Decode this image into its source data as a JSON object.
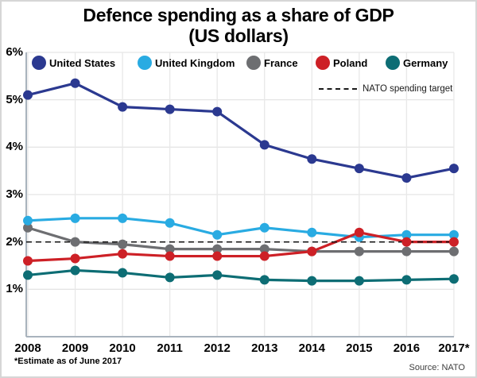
{
  "title": {
    "line1": "Defence spending as a share of GDP",
    "line2": "(US dollars)"
  },
  "footnote": "*Estimate as of June 2017",
  "source": "Source: NATO",
  "colors": {
    "united_states": "#2b3990",
    "united_kingdom": "#29abe2",
    "france": "#6d6e71",
    "poland": "#cd2026",
    "germany": "#0d6d74",
    "grid": "#e5e5e5",
    "axis": "#a9b3bd",
    "target_line": "#1a1a1a"
  },
  "chart_data": {
    "type": "line",
    "title": "Defence spending as a share of GDP (US dollars)",
    "x_labels": [
      "2008",
      "2009",
      "2010",
      "2011",
      "2012",
      "2013",
      "2014",
      "2015",
      "2016",
      "2017*"
    ],
    "y_ticks": [
      "6%",
      "5%",
      "4%",
      "3%",
      "2%",
      "1%"
    ],
    "ylim": [
      0,
      6
    ],
    "grid": true,
    "legend_position": "top-inside",
    "series": [
      {
        "name": "United States",
        "color": "#2b3990",
        "values": [
          5.1,
          5.35,
          4.85,
          4.8,
          4.75,
          4.05,
          3.75,
          3.55,
          3.35,
          3.55
        ]
      },
      {
        "name": "United Kingdom",
        "color": "#29abe2",
        "values": [
          2.45,
          2.5,
          2.5,
          2.4,
          2.15,
          2.3,
          2.2,
          2.1,
          2.15,
          2.15
        ]
      },
      {
        "name": "France",
        "color": "#6d6e71",
        "values": [
          2.3,
          2.0,
          1.95,
          1.85,
          1.85,
          1.85,
          1.8,
          1.8,
          1.8,
          1.8
        ]
      },
      {
        "name": "Poland",
        "color": "#cd2026",
        "values": [
          1.6,
          1.65,
          1.75,
          1.7,
          1.7,
          1.7,
          1.8,
          2.2,
          2.0,
          2.0
        ]
      },
      {
        "name": "Germany",
        "color": "#0d6d74",
        "values": [
          1.3,
          1.4,
          1.35,
          1.25,
          1.3,
          1.2,
          1.18,
          1.18,
          1.2,
          1.22
        ]
      }
    ],
    "reference_line": {
      "label": "NATO spending target",
      "value": 2.0,
      "style": "dashed",
      "color": "#1a1a1a"
    }
  }
}
